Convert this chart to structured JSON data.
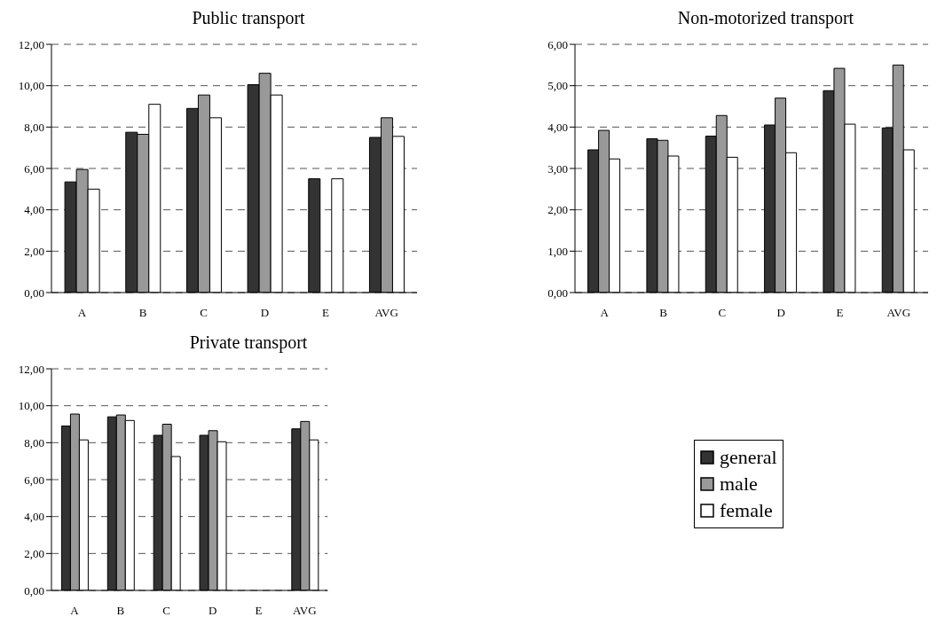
{
  "chart_data": [
    {
      "type": "bar",
      "title": "Public transport",
      "categories": [
        "A",
        "B",
        "C",
        "D",
        "E",
        "AVG"
      ],
      "series": [
        {
          "color": "#333333",
          "values": [
            5.35,
            7.75,
            8.9,
            10.05,
            5.5,
            7.5
          ]
        },
        {
          "color": "#999999",
          "values": [
            5.95,
            7.65,
            9.55,
            10.6,
            null,
            8.45
          ]
        },
        {
          "color": "#ffffff",
          "values": [
            5.0,
            9.1,
            8.45,
            9.55,
            5.5,
            7.55
          ]
        }
      ],
      "ylim": [
        0,
        12
      ],
      "yticks": [
        {
          "value": 0,
          "label": "0,00"
        },
        {
          "value": 2,
          "label": "2,00"
        },
        {
          "value": 4,
          "label": "4,00"
        },
        {
          "value": 6,
          "label": "6,00"
        },
        {
          "value": 8,
          "label": "8,00"
        },
        {
          "value": 10,
          "label": "10,00"
        },
        {
          "value": 12,
          "label": "12,00"
        }
      ],
      "grid": "y",
      "legend": false
    },
    {
      "type": "bar",
      "title": "Non-motorized transport",
      "categories": [
        "A",
        "B",
        "C",
        "D",
        "E",
        "AVG"
      ],
      "series": [
        {
          "color": "#333333",
          "values": [
            3.45,
            3.72,
            3.78,
            4.05,
            4.88,
            3.98
          ]
        },
        {
          "color": "#999999",
          "values": [
            3.92,
            3.68,
            4.28,
            4.7,
            5.42,
            5.5
          ]
        },
        {
          "color": "#ffffff",
          "values": [
            3.23,
            3.3,
            3.27,
            3.38,
            4.07,
            3.45
          ]
        }
      ],
      "ylim": [
        0,
        6
      ],
      "yticks": [
        {
          "value": 0,
          "label": "0,00"
        },
        {
          "value": 1,
          "label": "1,00"
        },
        {
          "value": 2,
          "label": "2,00"
        },
        {
          "value": 3,
          "label": "3,00"
        },
        {
          "value": 4,
          "label": "4,00"
        },
        {
          "value": 5,
          "label": "5,00"
        },
        {
          "value": 6,
          "label": "6,00"
        }
      ],
      "grid": "y",
      "legend": false
    },
    {
      "type": "bar",
      "title": "Private transport",
      "categories": [
        "A",
        "B",
        "C",
        "D",
        "E",
        "AVG"
      ],
      "series": [
        {
          "name": "general",
          "color": "#333333",
          "values": [
            8.9,
            9.4,
            8.4,
            8.4,
            null,
            8.75
          ]
        },
        {
          "name": "male",
          "color": "#999999",
          "values": [
            9.55,
            9.5,
            9.0,
            8.65,
            null,
            9.15
          ]
        },
        {
          "name": "female",
          "color": "#ffffff",
          "values": [
            8.15,
            9.2,
            7.25,
            8.05,
            null,
            8.15
          ]
        }
      ],
      "ylim": [
        0,
        12
      ],
      "yticks": [
        {
          "value": 0,
          "label": "0,00"
        },
        {
          "value": 2,
          "label": "2,00"
        },
        {
          "value": 4,
          "label": "4,00"
        },
        {
          "value": 6,
          "label": "6,00"
        },
        {
          "value": 8,
          "label": "8,00"
        },
        {
          "value": 10,
          "label": "10,00"
        },
        {
          "value": 12,
          "label": "12,00"
        }
      ],
      "grid": "y",
      "legend": "right"
    }
  ]
}
